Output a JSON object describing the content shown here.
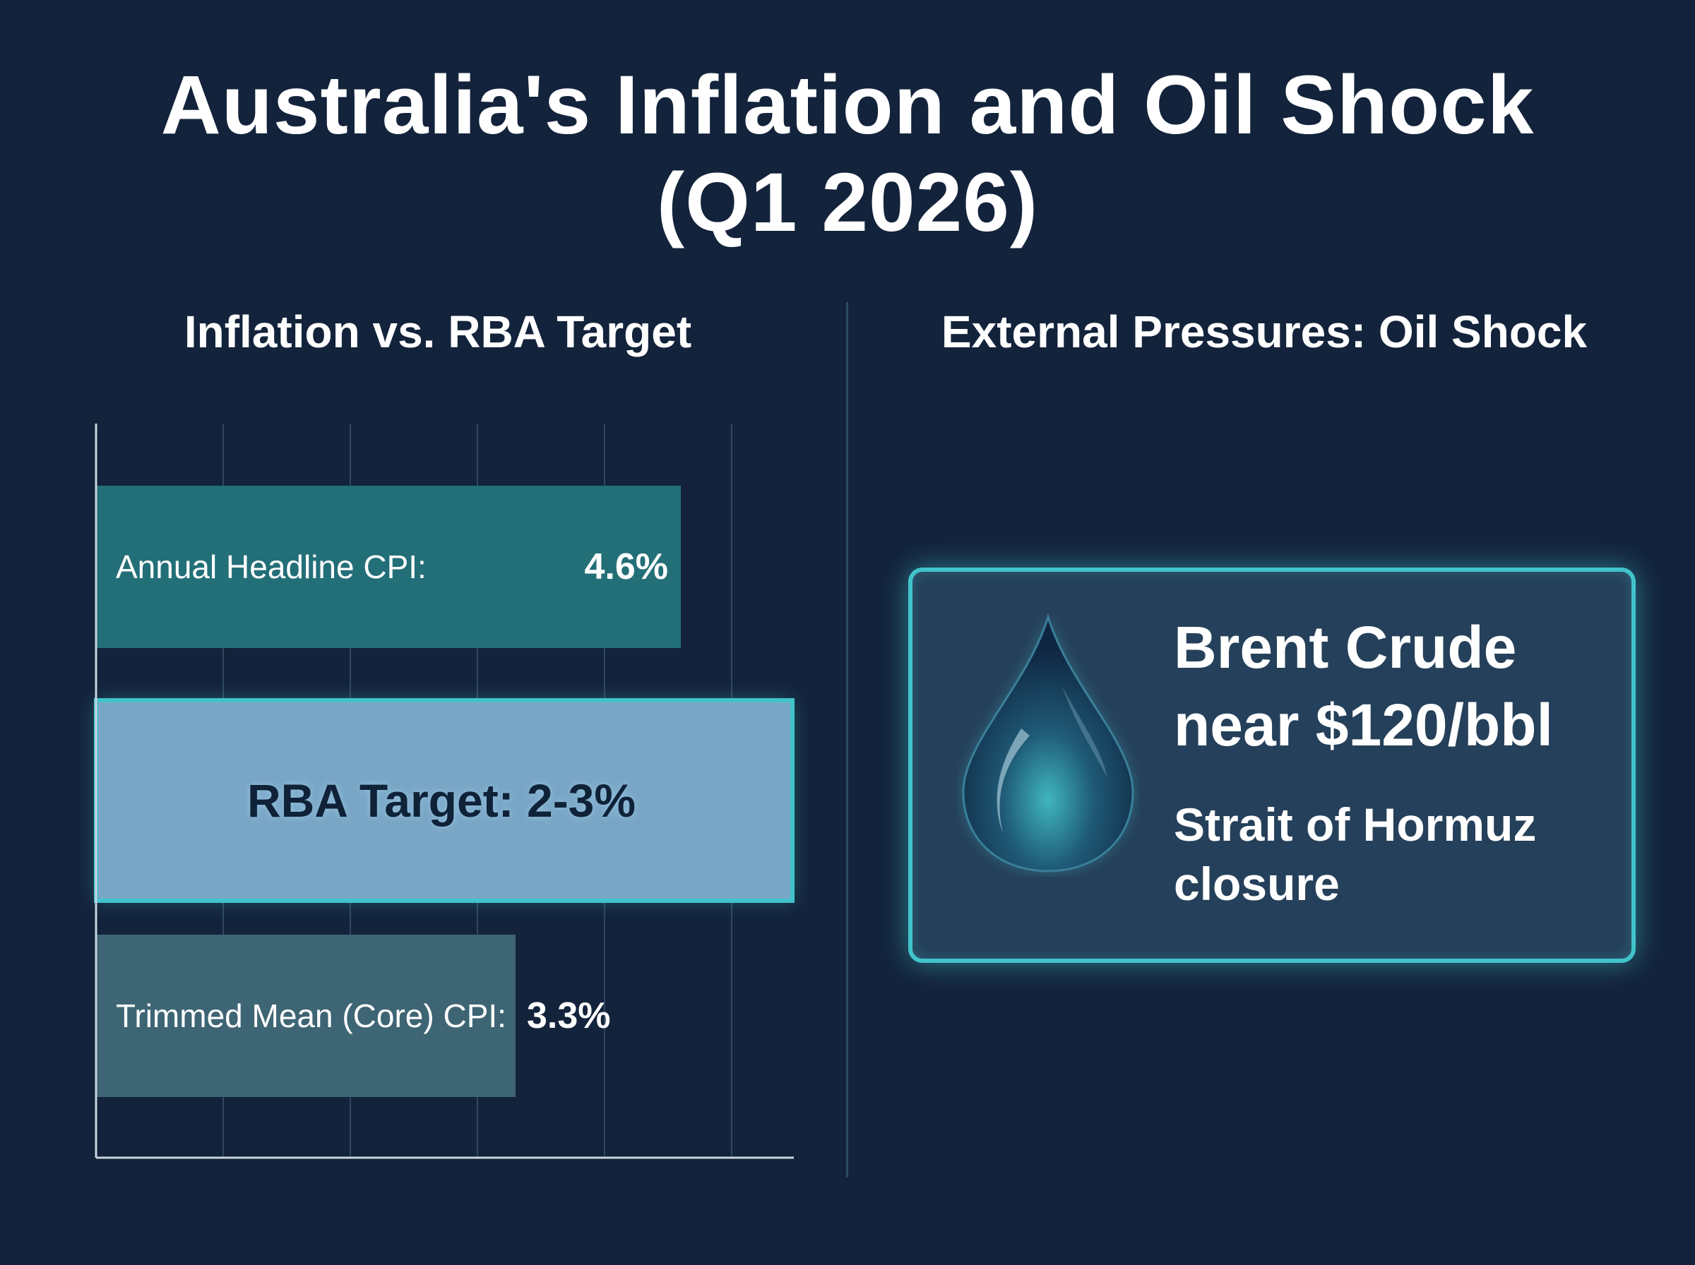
{
  "title": {
    "line1": "Australia's Inflation and Oil Shock",
    "line2": "(Q1 2026)"
  },
  "left_panel": {
    "title": "Inflation vs. RBA Target"
  },
  "right_panel": {
    "title": "External Pressures: Oil Shock",
    "headline": "Brent Crude near $120/bbl",
    "subtext": "Strait of Hormuz closure",
    "icon": "oil-drop-icon"
  },
  "colors": {
    "background": "#13233b",
    "headline_bar": "#236f78",
    "target_band": "#7aa6c6",
    "target_border": "#41c3ca",
    "core_bar": "#3e6574",
    "card_border": "#41c3ca"
  },
  "chart_data": {
    "type": "bar",
    "orientation": "horizontal",
    "title": "Inflation vs. RBA Target",
    "categories": [
      "Annual Headline CPI:",
      "Trimmed Mean (Core) CPI:"
    ],
    "values": [
      4.6,
      3.3
    ],
    "value_labels": [
      "4.6%",
      "3.3%"
    ],
    "unit": "%",
    "xlim": [
      0,
      5
    ],
    "grid": true,
    "band": {
      "label": "RBA Target: 2-3%",
      "low": 2,
      "high": 3
    }
  }
}
